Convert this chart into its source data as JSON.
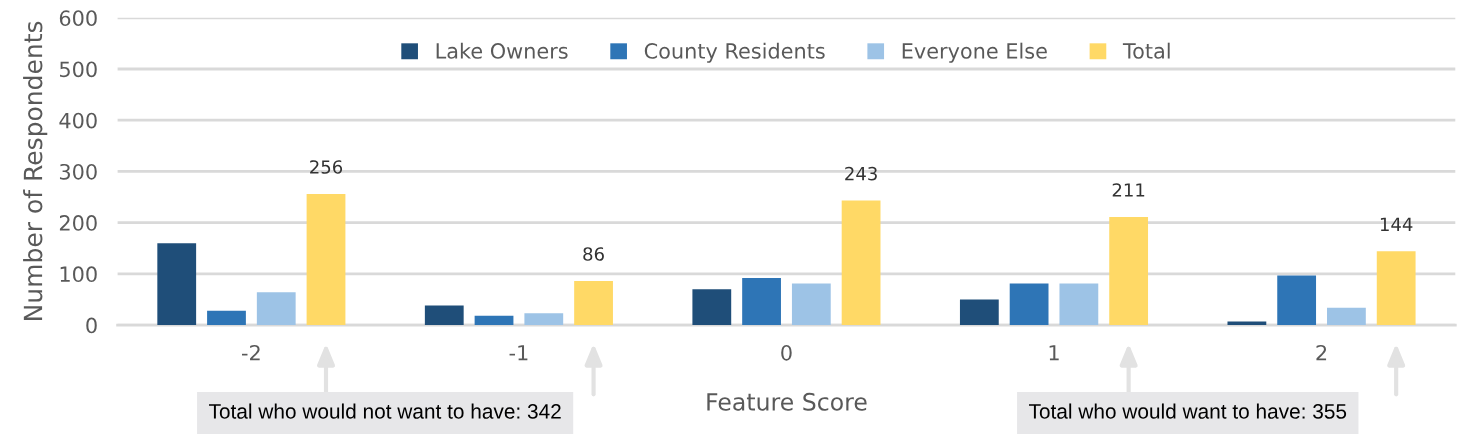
{
  "chart_data": {
    "type": "bar",
    "xlabel": "Feature Score",
    "ylabel": "Number of Respondents",
    "categories": [
      "-2",
      "-1",
      "0",
      "1",
      "2"
    ],
    "series": [
      {
        "name": "Lake Owners",
        "color": "#1f4e79",
        "values": [
          160,
          38,
          70,
          50,
          7
        ]
      },
      {
        "name": "County Residents",
        "color": "#2e75b6",
        "values": [
          28,
          18,
          92,
          81,
          97
        ]
      },
      {
        "name": "Everyone Else",
        "color": "#9dc3e6",
        "values": [
          64,
          23,
          81,
          81,
          34
        ]
      },
      {
        "name": "Total",
        "color": "#ffd966",
        "values": [
          256,
          86,
          243,
          211,
          144
        ],
        "value_labels": [
          "256",
          "86",
          "243",
          "211",
          "144"
        ]
      }
    ],
    "ylim": [
      0,
      600
    ],
    "yticks": [
      0,
      100,
      200,
      300,
      400,
      500,
      600
    ],
    "grid": "y",
    "legend": "top",
    "annotations": [
      "Total who would not want to have: 342",
      "Total who would want to have: 355"
    ]
  }
}
